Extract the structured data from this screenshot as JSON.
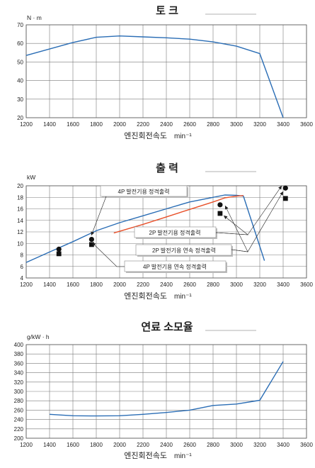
{
  "chart_data": [
    {
      "type": "line",
      "title": "토 크",
      "ylabel": "N · m",
      "xlabel": "엔진회전속도",
      "xunit": "min⁻¹",
      "xlim": [
        1200,
        3600
      ],
      "ylim": [
        20,
        70
      ],
      "xticks": [
        1200,
        1400,
        1600,
        1800,
        2000,
        2200,
        2400,
        2600,
        2800,
        3000,
        3200,
        3400,
        3600
      ],
      "yticks": [
        20,
        30,
        40,
        50,
        60,
        70
      ],
      "grid": true,
      "series": [
        {
          "color": "#2a6db5",
          "x": [
            1200,
            1400,
            1600,
            1800,
            2000,
            2200,
            2400,
            2600,
            2800,
            3000,
            3200,
            3400
          ],
          "y": [
            53.5,
            57,
            60.5,
            63.3,
            64,
            63.5,
            63,
            62.3,
            60.8,
            58.5,
            54.5,
            20
          ]
        }
      ]
    },
    {
      "type": "line",
      "title": "출 력",
      "ylabel": "kW",
      "xlabel": "엔진회전속도",
      "xunit": "min⁻¹",
      "xlim": [
        1200,
        3600
      ],
      "ylim": [
        4,
        20
      ],
      "xticks": [
        1200,
        1400,
        1600,
        1800,
        2000,
        2200,
        2400,
        2600,
        2800,
        3000,
        3200,
        3400,
        3600
      ],
      "yticks": [
        4,
        6,
        8,
        10,
        12,
        14,
        16,
        18,
        20
      ],
      "grid": true,
      "series": [
        {
          "color": "#2a6db5",
          "x": [
            1200,
            1400,
            1600,
            1800,
            2000,
            2200,
            2400,
            2600,
            2800,
            2900,
            3000,
            3060,
            3240
          ],
          "y": [
            6.7,
            8.5,
            10.3,
            12.2,
            13.6,
            14.8,
            16,
            17.2,
            18,
            18.4,
            18.35,
            18.2,
            7
          ]
        },
        {
          "color": "#e8502a",
          "x": [
            1950,
            2200,
            2400,
            2600,
            2800,
            2900,
            3000,
            3060
          ],
          "y": [
            11.8,
            13.3,
            14.6,
            15.9,
            17.2,
            17.9,
            18.2,
            18.3
          ]
        }
      ],
      "markers": [
        {
          "shape": "circle",
          "x": 1480,
          "y": 9
        },
        {
          "shape": "square",
          "x": 1480,
          "y": 8.2
        },
        {
          "shape": "circle",
          "x": 1760,
          "y": 10.7
        },
        {
          "shape": "square",
          "x": 1760,
          "y": 9.8
        },
        {
          "shape": "circle",
          "x": 2860,
          "y": 16.7
        },
        {
          "shape": "square",
          "x": 2860,
          "y": 15.2
        },
        {
          "shape": "circle",
          "x": 3420,
          "y": 19.6
        },
        {
          "shape": "square",
          "x": 3420,
          "y": 17.8
        }
      ],
      "annotations": [
        {
          "text": "4P 발전기용 정격출력"
        },
        {
          "text": "2P 발전기용 정격출력"
        },
        {
          "text": "2P 발전기용 연속 정격출력"
        },
        {
          "text": "4P 발전기용 연속 정격출력"
        }
      ]
    },
    {
      "type": "line",
      "title": "연료 소모율",
      "ylabel": "g/kW · h",
      "xlabel": "엔진회전속도",
      "xunit": "min⁻¹",
      "xlim": [
        1200,
        3600
      ],
      "ylim": [
        200,
        400
      ],
      "xticks": [
        1200,
        1400,
        1600,
        1800,
        2000,
        2200,
        2400,
        2600,
        2800,
        3000,
        3200,
        3400,
        3600
      ],
      "yticks": [
        200,
        220,
        240,
        260,
        280,
        300,
        320,
        340,
        360,
        380,
        400
      ],
      "grid": true,
      "series": [
        {
          "color": "#2a6db5",
          "x": [
            1400,
            1600,
            1800,
            2000,
            2200,
            2400,
            2600,
            2800,
            3000,
            3200,
            3400
          ],
          "y": [
            251,
            248,
            247.5,
            248,
            251,
            255,
            260,
            270,
            273,
            281,
            364
          ]
        }
      ]
    }
  ]
}
